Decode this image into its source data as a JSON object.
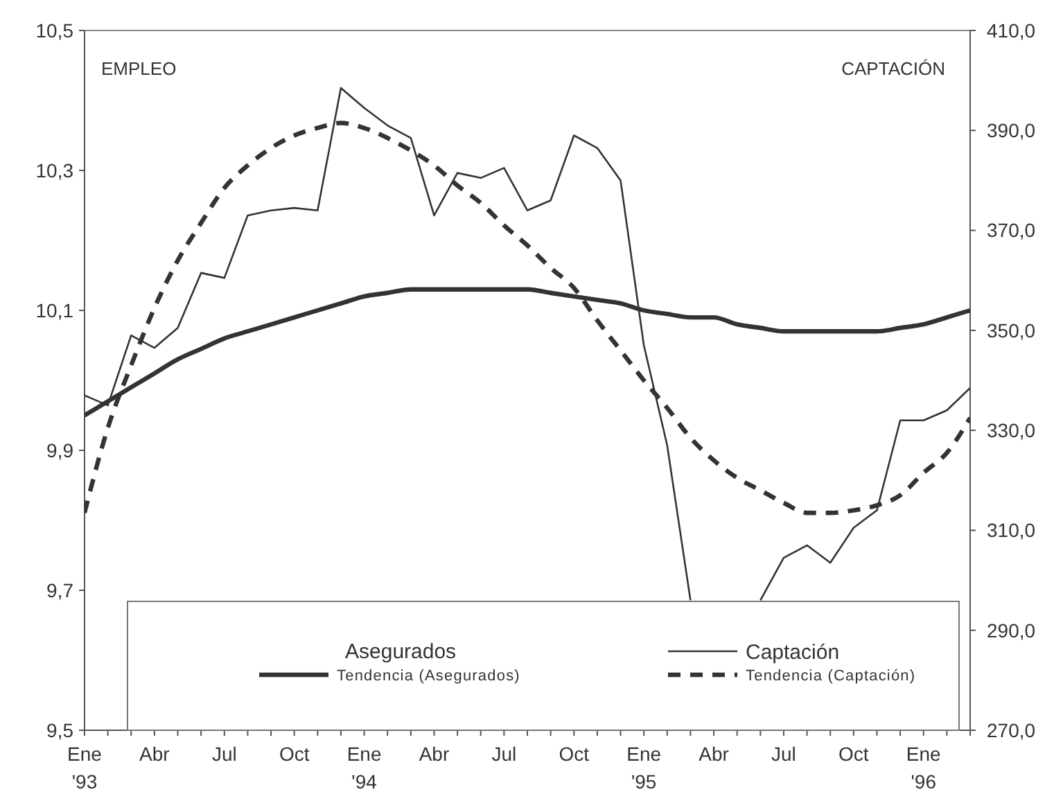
{
  "chart_data": {
    "type": "line",
    "ylabel": "EMPLEO",
    "y2label": "CAPTACIÓN",
    "categories": [
      "Ene '93",
      null,
      null,
      "Abr",
      null,
      null,
      "Jul",
      null,
      null,
      "Oct",
      null,
      null,
      "Ene '94",
      null,
      null,
      "Abr",
      null,
      null,
      "Jul",
      null,
      null,
      "Oct",
      null,
      null,
      "Ene '95",
      null,
      null,
      "Abr",
      null,
      null,
      "Jul",
      null,
      null,
      "Oct",
      null,
      null,
      "Ene '96",
      null,
      null
    ],
    "ylim": [
      9.5,
      10.5
    ],
    "yticks": [
      {
        "value": 9.5,
        "label": "9,5"
      },
      {
        "value": 9.7,
        "label": "9,7"
      },
      {
        "value": 9.9,
        "label": "9,9"
      },
      {
        "value": 10.1,
        "label": "10,1"
      },
      {
        "value": 10.3,
        "label": "10,3"
      },
      {
        "value": 10.5,
        "label": "10,5"
      }
    ],
    "y2lim": [
      270,
      410
    ],
    "y2ticks": [
      {
        "value": 270,
        "label": "270,0"
      },
      {
        "value": 290,
        "label": "290,0"
      },
      {
        "value": 310,
        "label": "310,0"
      },
      {
        "value": 330,
        "label": "330,0"
      },
      {
        "value": 350,
        "label": "350,0"
      },
      {
        "value": 370,
        "label": "370,0"
      },
      {
        "value": 390,
        "label": "390,0"
      },
      {
        "value": 410,
        "label": "410,0"
      }
    ],
    "series": [
      {
        "name": "Captación",
        "color": "#333333",
        "axis": "y2",
        "line_style": "solid",
        "values": [
          337,
          335,
          349,
          346.5,
          350.5,
          361.5,
          360.5,
          373,
          374,
          374.5,
          374,
          398.5,
          394.5,
          391,
          388.5,
          373,
          381.5,
          380.5,
          382.5,
          374,
          376,
          389,
          386.5,
          380,
          347,
          327,
          296,
          null,
          null,
          296,
          304.5,
          307,
          303.5,
          310.5,
          314,
          332,
          332,
          334,
          338.5
        ]
      },
      {
        "name": "Tendencia (Asegurados)",
        "color": "#333333",
        "line_style": "solid",
        "values": [
          9.95,
          9.97,
          9.99,
          10.01,
          10.03,
          10.045,
          10.06,
          10.07,
          10.08,
          10.09,
          10.1,
          10.11,
          10.12,
          10.125,
          10.13,
          10.13,
          10.13,
          10.13,
          10.13,
          10.13,
          10.125,
          10.12,
          10.115,
          10.11,
          10.1,
          10.095,
          10.09,
          10.09,
          10.08,
          10.075,
          10.07,
          10.07,
          10.07,
          10.07,
          10.07,
          10.075,
          10.08,
          10.09,
          10.1
        ]
      },
      {
        "name": "Tendencia (Captación)",
        "color": "#333333",
        "axis": "y2",
        "line_style": "dashed",
        "values": [
          313.5,
          330.5,
          343,
          354.5,
          364,
          371.5,
          378.5,
          383,
          386.5,
          389,
          390.5,
          391.5,
          390.5,
          388.5,
          386,
          383,
          379,
          375.5,
          371,
          367,
          362.5,
          358.5,
          352,
          346,
          340,
          334.5,
          328.5,
          324,
          320.5,
          318,
          315.5,
          313.5,
          313.5,
          314,
          315,
          317,
          321.5,
          325.5,
          332.5
        ]
      }
    ],
    "legend": "bottom",
    "annotations": [
      "Asegurados"
    ]
  }
}
